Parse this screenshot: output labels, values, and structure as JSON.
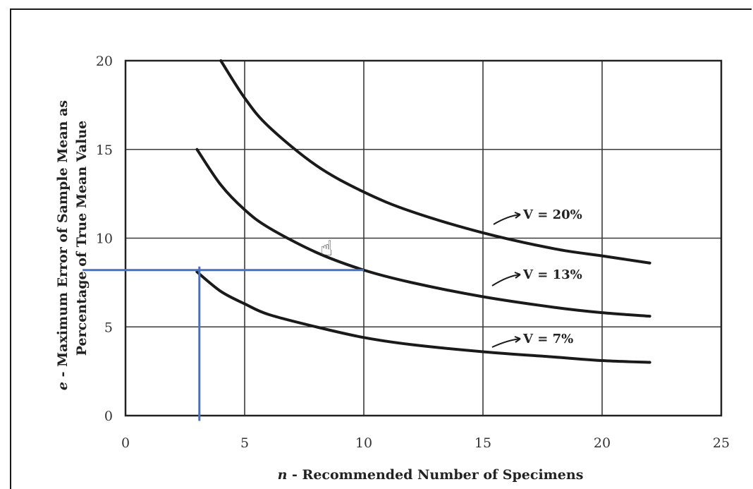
{
  "chart_data": {
    "type": "line",
    "xlabel_var": "n",
    "xlabel": " - Recommended Number of Specimens",
    "ylabel_var": "e",
    "ylabel_line1": " - Maximum Error of Sample Mean as",
    "ylabel_line2": "Percentage of True Mean Value",
    "xlim": [
      0,
      25
    ],
    "ylim": [
      0,
      20
    ],
    "x_ticks": [
      "0",
      "5",
      "10",
      "15",
      "20",
      "25"
    ],
    "y_ticks": [
      "0",
      "5",
      "10",
      "15",
      "20"
    ],
    "grid": true,
    "series": [
      {
        "name": "V = 20%",
        "x": [
          4,
          5,
          6,
          8,
          10,
          12,
          15,
          18,
          20,
          22
        ],
        "y": [
          20,
          17.9,
          16.3,
          14.1,
          12.6,
          11.5,
          10.3,
          9.4,
          9.0,
          8.6
        ]
      },
      {
        "name": "V = 13%",
        "x": [
          3,
          4,
          5,
          6,
          8,
          10,
          12,
          15,
          18,
          20,
          22
        ],
        "y": [
          15.0,
          13.0,
          11.6,
          10.6,
          9.2,
          8.2,
          7.5,
          6.7,
          6.1,
          5.8,
          5.6
        ]
      },
      {
        "name": "V = 7%",
        "x": [
          3,
          4,
          5,
          6,
          8,
          10,
          12,
          15,
          18,
          20,
          22
        ],
        "y": [
          8.1,
          7.0,
          6.3,
          5.7,
          5.0,
          4.4,
          4.0,
          3.6,
          3.3,
          3.1,
          3.0
        ]
      }
    ],
    "series_labels": [
      "V = 20%",
      "V = 13%",
      "V = 7%"
    ],
    "annotation_color": "#4472c4",
    "annotation_lines": [
      {
        "orientation": "horizontal",
        "y": 8.2,
        "x_from": -1.8,
        "x_to": 10
      },
      {
        "orientation": "vertical",
        "x": 3.1,
        "y_from": -0.3,
        "y_to": 8.4
      }
    ]
  },
  "icons": {
    "cursor": "hand-pointer-icon"
  }
}
